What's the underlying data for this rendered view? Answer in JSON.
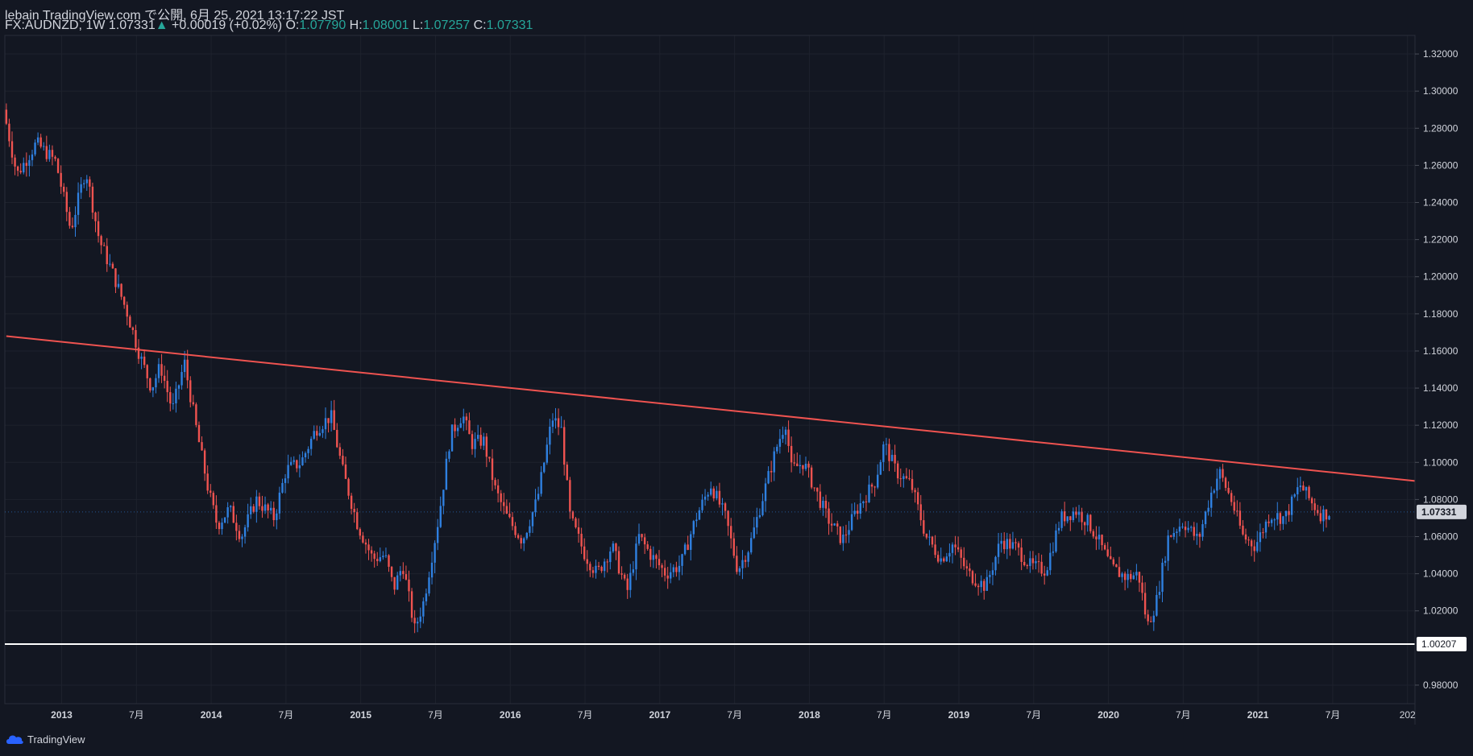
{
  "header": {
    "publisher": "lebain TradingView.com で公開, 6月 25, 2021 13:17:22 JST",
    "symbol": "FX:AUDNZD, 1W 1.07331",
    "change": "+0.00019 (+0.02%)",
    "o_label": "O:",
    "o_value": "1.07790",
    "h_label": "H:",
    "h_value": "1.08001",
    "l_label": "L:",
    "l_value": "1.07257",
    "c_label": "C:",
    "c_value": "1.07331"
  },
  "footer": {
    "brand": "TradingView"
  },
  "colors": {
    "background": "#131722",
    "up": "#2f80e0",
    "down": "#ef5350",
    "trendline": "#ef5350",
    "support": "#ffffff",
    "text": "#d1d4dc",
    "value_green": "#26a69a"
  },
  "chart_data": {
    "type": "candlestick",
    "timeframe": "1W",
    "x_ticks": [
      "2013",
      "7月",
      "2014",
      "7月",
      "2015",
      "7月",
      "2016",
      "7月",
      "2017",
      "7月",
      "2018",
      "7月",
      "2019",
      "7月",
      "2020",
      "7月",
      "2021",
      "7月",
      "202"
    ],
    "x_tick_dates": [
      2013.0,
      2013.5,
      2014.0,
      2014.5,
      2015.0,
      2015.5,
      2016.0,
      2016.5,
      2017.0,
      2017.5,
      2018.0,
      2018.5,
      2019.0,
      2019.5,
      2020.0,
      2020.5,
      2021.0,
      2021.5,
      2022.0
    ],
    "y_ticks": [
      "1.32000",
      "1.30000",
      "1.28000",
      "1.26000",
      "1.24000",
      "1.22000",
      "1.20000",
      "1.18000",
      "1.16000",
      "1.14000",
      "1.12000",
      "1.10000",
      "1.08000",
      "1.06000",
      "1.04000",
      "1.02000",
      "0.98000"
    ],
    "ylim": [
      0.97,
      1.33
    ],
    "xlim": [
      2012.62,
      2022.05
    ],
    "price_path": [
      [
        2012.63,
        1.29
      ],
      [
        2012.72,
        1.255
      ],
      [
        2012.85,
        1.272
      ],
      [
        2012.98,
        1.262
      ],
      [
        2013.08,
        1.225
      ],
      [
        2013.18,
        1.258
      ],
      [
        2013.27,
        1.22
      ],
      [
        2013.37,
        1.2
      ],
      [
        2013.46,
        1.18
      ],
      [
        2013.54,
        1.158
      ],
      [
        2013.62,
        1.14
      ],
      [
        2013.68,
        1.152
      ],
      [
        2013.76,
        1.128
      ],
      [
        2013.84,
        1.154
      ],
      [
        2013.92,
        1.118
      ],
      [
        2014.0,
        1.085
      ],
      [
        2014.06,
        1.066
      ],
      [
        2014.14,
        1.075
      ],
      [
        2014.22,
        1.06
      ],
      [
        2014.32,
        1.08
      ],
      [
        2014.44,
        1.07
      ],
      [
        2014.52,
        1.096
      ],
      [
        2014.62,
        1.1
      ],
      [
        2014.72,
        1.118
      ],
      [
        2014.82,
        1.125
      ],
      [
        2014.9,
        1.095
      ],
      [
        2015.0,
        1.066
      ],
      [
        2015.1,
        1.048
      ],
      [
        2015.18,
        1.05
      ],
      [
        2015.24,
        1.032
      ],
      [
        2015.3,
        1.045
      ],
      [
        2015.38,
        1.01
      ],
      [
        2015.44,
        1.025
      ],
      [
        2015.54,
        1.07
      ],
      [
        2015.62,
        1.115
      ],
      [
        2015.7,
        1.126
      ],
      [
        2015.76,
        1.11
      ],
      [
        2015.84,
        1.112
      ],
      [
        2015.92,
        1.085
      ],
      [
        2016.0,
        1.07
      ],
      [
        2016.1,
        1.058
      ],
      [
        2016.2,
        1.08
      ],
      [
        2016.3,
        1.124
      ],
      [
        2016.36,
        1.118
      ],
      [
        2016.42,
        1.07
      ],
      [
        2016.52,
        1.05
      ],
      [
        2016.6,
        1.04
      ],
      [
        2016.7,
        1.055
      ],
      [
        2016.8,
        1.03
      ],
      [
        2016.88,
        1.06
      ],
      [
        2016.96,
        1.05
      ],
      [
        2017.06,
        1.04
      ],
      [
        2017.16,
        1.045
      ],
      [
        2017.26,
        1.07
      ],
      [
        2017.36,
        1.088
      ],
      [
        2017.46,
        1.07
      ],
      [
        2017.54,
        1.042
      ],
      [
        2017.62,
        1.055
      ],
      [
        2017.72,
        1.085
      ],
      [
        2017.8,
        1.108
      ],
      [
        2017.86,
        1.122
      ],
      [
        2017.9,
        1.096
      ],
      [
        2017.98,
        1.1
      ],
      [
        2018.06,
        1.085
      ],
      [
        2018.14,
        1.07
      ],
      [
        2018.24,
        1.058
      ],
      [
        2018.34,
        1.075
      ],
      [
        2018.46,
        1.09
      ],
      [
        2018.52,
        1.11
      ],
      [
        2018.6,
        1.095
      ],
      [
        2018.7,
        1.088
      ],
      [
        2018.8,
        1.06
      ],
      [
        2018.9,
        1.048
      ],
      [
        2018.98,
        1.056
      ],
      [
        2019.08,
        1.04
      ],
      [
        2019.2,
        1.033
      ],
      [
        2019.3,
        1.058
      ],
      [
        2019.4,
        1.054
      ],
      [
        2019.5,
        1.044
      ],
      [
        2019.6,
        1.042
      ],
      [
        2019.7,
        1.07
      ],
      [
        2019.8,
        1.074
      ],
      [
        2019.88,
        1.068
      ],
      [
        2019.94,
        1.06
      ],
      [
        2020.04,
        1.043
      ],
      [
        2020.14,
        1.038
      ],
      [
        2020.22,
        1.04
      ],
      [
        2020.28,
        1.012
      ],
      [
        2020.34,
        1.025
      ],
      [
        2020.42,
        1.06
      ],
      [
        2020.52,
        1.068
      ],
      [
        2020.62,
        1.058
      ],
      [
        2020.7,
        1.082
      ],
      [
        2020.76,
        1.095
      ],
      [
        2020.84,
        1.08
      ],
      [
        2020.92,
        1.06
      ],
      [
        2021.0,
        1.055
      ],
      [
        2021.1,
        1.072
      ],
      [
        2021.2,
        1.07
      ],
      [
        2021.3,
        1.088
      ],
      [
        2021.38,
        1.078
      ],
      [
        2021.44,
        1.072
      ],
      [
        2021.49,
        1.073
      ]
    ],
    "last_price": "1.07331",
    "support_label": "1.00207",
    "support_level": 1.00207,
    "trendline": {
      "start": [
        2012.63,
        1.168
      ],
      "end": [
        2022.05,
        1.09
      ]
    }
  }
}
